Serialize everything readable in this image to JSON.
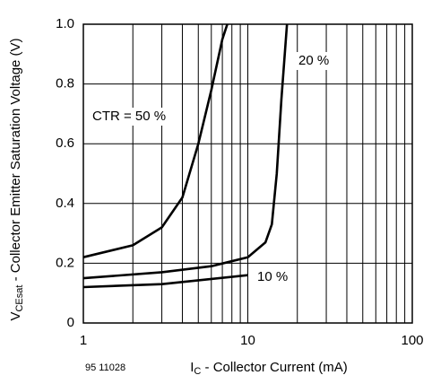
{
  "chart_data": {
    "type": "line",
    "x_label": {
      "main": "I",
      "sub": "C",
      "rest": " - Collector Current (mA)"
    },
    "y_label": {
      "main": "V",
      "sub": "CEsat",
      "rest": " - Collector Emitter Saturation Voltage (V)"
    },
    "figure_code": "95 11028",
    "x_log": true,
    "xlim": [
      1,
      100
    ],
    "xticks": [
      1,
      10,
      100
    ],
    "ylim": [
      0,
      1
    ],
    "yticks": [
      0,
      0.2,
      0.4,
      0.6,
      0.8,
      {
        "value": 1,
        "label": "1.0"
      }
    ],
    "grid": true,
    "series": [
      {
        "name": "CTR = 50 %",
        "color": "#000000",
        "x": [
          1,
          2,
          3,
          4,
          5,
          6,
          7,
          7.5
        ],
        "values": [
          0.22,
          0.26,
          0.32,
          0.42,
          0.6,
          0.78,
          0.95,
          1.0
        ]
      },
      {
        "name": "20 %",
        "color": "#000000",
        "x": [
          1,
          3,
          6,
          10,
          12.8,
          14,
          15,
          16,
          17.3
        ],
        "values": [
          0.15,
          0.17,
          0.19,
          0.22,
          0.27,
          0.33,
          0.5,
          0.75,
          1.0
        ]
      },
      {
        "name": "10 %",
        "color": "#000000",
        "x": [
          1,
          3,
          10
        ],
        "values": [
          0.12,
          0.13,
          0.16
        ]
      }
    ]
  }
}
